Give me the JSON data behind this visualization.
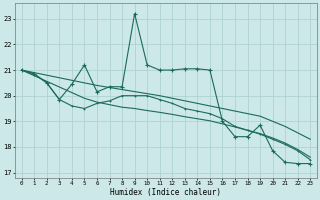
{
  "xlabel": "Humidex (Indice chaleur)",
  "bg_color": "#cce8e8",
  "grid_color": "#aacece",
  "line_color": "#1a6b5a",
  "xlim": [
    -0.5,
    23.5
  ],
  "ylim": [
    16.8,
    23.6
  ],
  "yticks": [
    17,
    18,
    19,
    20,
    21,
    22,
    23
  ],
  "xticks": [
    0,
    1,
    2,
    3,
    4,
    5,
    6,
    7,
    8,
    9,
    10,
    11,
    12,
    13,
    14,
    15,
    16,
    17,
    18,
    19,
    20,
    21,
    22,
    23
  ],
  "series1_x": [
    0,
    1,
    2,
    3,
    4,
    5,
    6,
    7,
    8,
    9,
    10,
    11,
    12,
    13,
    14,
    15,
    16,
    17,
    18,
    19,
    20,
    21,
    22,
    23
  ],
  "series1_y": [
    21.0,
    20.85,
    20.5,
    19.85,
    20.45,
    21.2,
    20.15,
    20.35,
    20.35,
    23.2,
    21.2,
    21.0,
    21.0,
    21.05,
    21.05,
    21.0,
    19.0,
    18.4,
    18.4,
    18.85,
    17.85,
    17.4,
    17.35,
    17.35
  ],
  "series2_x": [
    0,
    1,
    2,
    3,
    4,
    5,
    6,
    7,
    8,
    9,
    10,
    11,
    12,
    13,
    14,
    15,
    16,
    17,
    18,
    19,
    20,
    21,
    22,
    23
  ],
  "series2_y": [
    21.0,
    20.85,
    20.5,
    19.85,
    19.6,
    19.5,
    19.7,
    19.8,
    20.0,
    20.0,
    20.0,
    19.85,
    19.7,
    19.5,
    19.4,
    19.3,
    19.1,
    18.8,
    18.65,
    18.5,
    18.3,
    18.1,
    17.85,
    17.5
  ],
  "series3_x": [
    0,
    1,
    2,
    3,
    4,
    5,
    6,
    7,
    8,
    9,
    10,
    11,
    12,
    13,
    14,
    15,
    16,
    17,
    18,
    19,
    20,
    21,
    22,
    23
  ],
  "series3_y": [
    21.0,
    20.78,
    20.56,
    20.34,
    20.12,
    19.9,
    19.75,
    19.65,
    19.55,
    19.5,
    19.42,
    19.35,
    19.27,
    19.18,
    19.1,
    19.02,
    18.9,
    18.78,
    18.65,
    18.52,
    18.35,
    18.15,
    17.9,
    17.6
  ],
  "series4_x": [
    0,
    1,
    2,
    3,
    4,
    5,
    6,
    7,
    8,
    9,
    10,
    11,
    12,
    13,
    14,
    15,
    16,
    17,
    18,
    19,
    20,
    21,
    22,
    23
  ],
  "series4_y": [
    21.0,
    20.9,
    20.8,
    20.7,
    20.6,
    20.5,
    20.4,
    20.32,
    20.24,
    20.16,
    20.08,
    20.0,
    19.9,
    19.8,
    19.7,
    19.6,
    19.5,
    19.4,
    19.3,
    19.2,
    19.0,
    18.8,
    18.55,
    18.3
  ]
}
